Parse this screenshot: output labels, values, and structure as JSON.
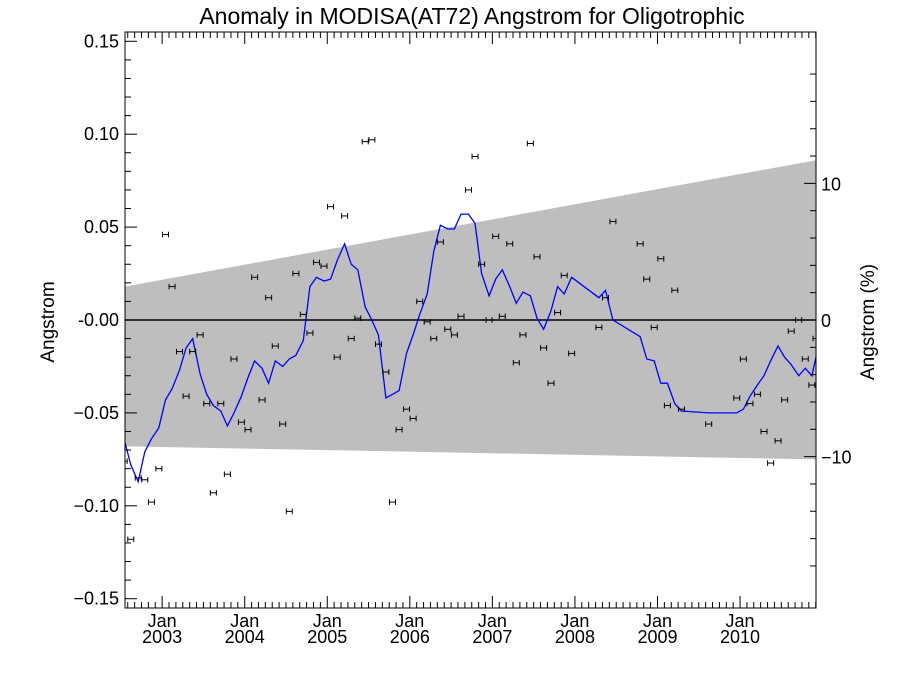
{
  "chart_data": {
    "type": "scatter",
    "title": "Anomaly in MODISA(AT72) Angstrom for Oligotrophic",
    "ylabel": "Angstrom",
    "ylabel_right": "Angstrom (%)",
    "xlabel": "",
    "ylim": [
      -0.155,
      0.155
    ],
    "xlim": [
      2002.55,
      2010.92
    ],
    "yticks": [
      0.15,
      0.1,
      0.05,
      0.0,
      -0.05,
      -0.1,
      -0.15
    ],
    "ytick_labels": [
      "0.15",
      "0.10",
      "0.05",
      "-0.00",
      "−0.05",
      "−0.10",
      "−0.15"
    ],
    "yticks_right": [
      10,
      0,
      -10
    ],
    "ytick_right_labels": [
      "10",
      "0",
      "−10"
    ],
    "xticks": [
      {
        "x": 2003.0,
        "month": "Jan",
        "year": "2003"
      },
      {
        "x": 2004.0,
        "month": "Jan",
        "year": "2004"
      },
      {
        "x": 2005.0,
        "month": "Jan",
        "year": "2005"
      },
      {
        "x": 2006.0,
        "month": "Jan",
        "year": "2006"
      },
      {
        "x": 2007.0,
        "month": "Jan",
        "year": "2007"
      },
      {
        "x": 2008.0,
        "month": "Jan",
        "year": "2008"
      },
      {
        "x": 2009.0,
        "month": "Jan",
        "year": "2009"
      },
      {
        "x": 2010.0,
        "month": "Jan",
        "year": "2010"
      }
    ],
    "band": {
      "x": [
        2002.55,
        2010.92
      ],
      "upper": [
        0.018,
        0.086
      ],
      "lower": [
        -0.068,
        -0.075
      ],
      "color": "#bebebe"
    },
    "zero_line": 0.0,
    "series": [
      {
        "kind": "points_with_errorbars",
        "color": "#000000",
        "x": [
          2002.54,
          2002.62,
          2002.71,
          2002.79,
          2002.87,
          2002.96,
          2003.04,
          2003.12,
          2003.21,
          2003.29,
          2003.37,
          2003.46,
          2003.54,
          2003.62,
          2003.71,
          2003.79,
          2003.87,
          2003.96,
          2004.04,
          2004.12,
          2004.21,
          2004.29,
          2004.37,
          2004.46,
          2004.54,
          2004.62,
          2004.71,
          2004.79,
          2004.87,
          2004.96,
          2005.04,
          2005.12,
          2005.21,
          2005.29,
          2005.37,
          2005.46,
          2005.54,
          2005.62,
          2005.71,
          2005.79,
          2005.87,
          2005.96,
          2006.04,
          2006.12,
          2006.21,
          2006.29,
          2006.37,
          2006.46,
          2006.54,
          2006.62,
          2006.71,
          2006.79,
          2006.87,
          2006.96,
          2007.04,
          2007.12,
          2007.21,
          2007.29,
          2007.37,
          2007.46,
          2007.54,
          2007.62,
          2007.71,
          2007.79,
          2007.87,
          2007.96,
          2008.29,
          2008.37,
          2008.46,
          2008.79,
          2008.87,
          2008.96,
          2009.04,
          2009.12,
          2009.21,
          2009.29,
          2009.62,
          2009.96,
          2010.04,
          2010.12,
          2010.21,
          2010.29,
          2010.37,
          2010.46,
          2010.54,
          2010.62,
          2010.71,
          2010.79,
          2010.87,
          2010.92
        ],
        "y": [
          -0.076,
          -0.118,
          -0.085,
          -0.086,
          -0.098,
          -0.08,
          0.046,
          0.018,
          -0.017,
          -0.041,
          -0.017,
          -0.008,
          -0.045,
          -0.093,
          -0.045,
          -0.083,
          -0.021,
          -0.055,
          -0.059,
          0.023,
          -0.043,
          0.012,
          -0.014,
          -0.056,
          -0.103,
          0.025,
          0.003,
          -0.007,
          0.031,
          0.029,
          0.061,
          -0.02,
          0.056,
          -0.01,
          0.001,
          0.096,
          0.097,
          -0.013,
          -0.028,
          -0.098,
          -0.059,
          -0.048,
          -0.053,
          0.01,
          -0.001,
          -0.01,
          0.042,
          -0.005,
          -0.008,
          0.002,
          0.07,
          0.088,
          0.03,
          0.0,
          0.045,
          0.002,
          0.041,
          -0.023,
          -0.008,
          0.095,
          0.034,
          -0.015,
          -0.034,
          0.004,
          0.024,
          -0.018,
          -0.004,
          0.012,
          0.053,
          0.041,
          0.022,
          -0.004,
          0.033,
          -0.046,
          0.016,
          -0.048,
          -0.056,
          -0.042,
          -0.021,
          -0.045,
          -0.04,
          -0.06,
          -0.077,
          -0.065,
          -0.043,
          -0.006,
          0.0,
          -0.021,
          -0.035,
          -0.01
        ],
        "err": 0.0015
      },
      {
        "kind": "smoothed_line",
        "color": "#0000ff",
        "x": [
          2002.55,
          2002.62,
          2002.71,
          2002.79,
          2002.87,
          2002.96,
          2003.04,
          2003.12,
          2003.21,
          2003.29,
          2003.37,
          2003.46,
          2003.54,
          2003.62,
          2003.71,
          2003.79,
          2003.87,
          2003.96,
          2004.04,
          2004.12,
          2004.21,
          2004.29,
          2004.37,
          2004.46,
          2004.54,
          2004.62,
          2004.71,
          2004.79,
          2004.87,
          2004.96,
          2005.04,
          2005.12,
          2005.21,
          2005.29,
          2005.37,
          2005.46,
          2005.54,
          2005.62,
          2005.71,
          2005.79,
          2005.87,
          2005.96,
          2006.04,
          2006.12,
          2006.21,
          2006.29,
          2006.37,
          2006.46,
          2006.54,
          2006.62,
          2006.71,
          2006.79,
          2006.87,
          2006.96,
          2007.04,
          2007.12,
          2007.21,
          2007.29,
          2007.37,
          2007.46,
          2007.54,
          2007.62,
          2007.71,
          2007.79,
          2007.87,
          2007.96,
          2008.29,
          2008.37,
          2008.46,
          2008.79,
          2008.87,
          2008.96,
          2009.04,
          2009.12,
          2009.21,
          2009.29,
          2009.62,
          2009.96,
          2010.04,
          2010.12,
          2010.21,
          2010.29,
          2010.37,
          2010.46,
          2010.54,
          2010.62,
          2010.71,
          2010.79,
          2010.87,
          2010.92
        ],
        "y": [
          -0.066,
          -0.078,
          -0.087,
          -0.071,
          -0.064,
          -0.058,
          -0.043,
          -0.037,
          -0.027,
          -0.015,
          -0.01,
          -0.029,
          -0.04,
          -0.046,
          -0.049,
          -0.057,
          -0.05,
          -0.041,
          -0.031,
          -0.022,
          -0.026,
          -0.034,
          -0.022,
          -0.025,
          -0.021,
          -0.019,
          -0.011,
          0.018,
          0.023,
          0.021,
          0.022,
          0.032,
          0.041,
          0.03,
          0.027,
          0.007,
          0.0,
          -0.008,
          -0.042,
          -0.04,
          -0.038,
          -0.018,
          -0.008,
          0.003,
          0.014,
          0.037,
          0.051,
          0.049,
          0.049,
          0.057,
          0.057,
          0.052,
          0.025,
          0.013,
          0.022,
          0.027,
          0.018,
          0.009,
          0.015,
          0.013,
          0.001,
          -0.005,
          0.005,
          0.018,
          0.014,
          0.023,
          0.012,
          0.016,
          0.0,
          -0.009,
          -0.021,
          -0.022,
          -0.034,
          -0.034,
          -0.045,
          -0.049,
          -0.05,
          -0.05,
          -0.048,
          -0.041,
          -0.035,
          -0.03,
          -0.022,
          -0.014,
          -0.02,
          -0.024,
          -0.03,
          -0.026,
          -0.03,
          -0.02
        ]
      }
    ],
    "grid": false,
    "legend": "none"
  }
}
